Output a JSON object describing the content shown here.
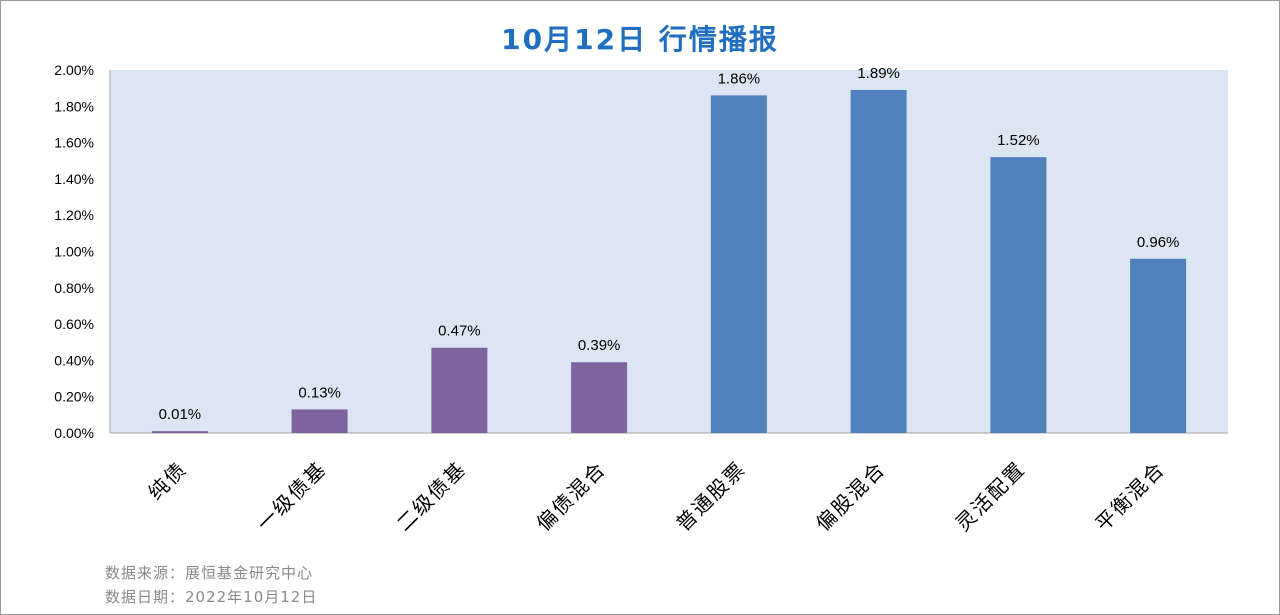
{
  "chart_data": {
    "type": "bar",
    "title": "10月12日  行情播报",
    "categories": [
      "纯债",
      "一级债基",
      "二级债基",
      "偏债混合",
      "普通股票",
      "偏股混合",
      "灵活配置",
      "平衡混合"
    ],
    "values": [
      0.01,
      0.13,
      0.47,
      0.39,
      1.86,
      1.89,
      1.52,
      0.96
    ],
    "data_labels": [
      "0.01%",
      "0.13%",
      "0.47%",
      "0.39%",
      "1.86%",
      "1.89%",
      "1.52%",
      "0.96%"
    ],
    "bar_colors": [
      "#8064a2",
      "#8064a2",
      "#8064a2",
      "#8064a2",
      "#4f81bd",
      "#4f81bd",
      "#4f81bd",
      "#4f81bd"
    ],
    "ylim": [
      0,
      2.0
    ],
    "yticks": [
      0,
      0.2,
      0.4,
      0.6,
      0.8,
      1.0,
      1.2,
      1.4,
      1.6,
      1.8,
      2.0
    ],
    "ytick_labels": [
      "0.00%",
      "0.20%",
      "0.40%",
      "0.60%",
      "0.80%",
      "1.00%",
      "1.20%",
      "1.40%",
      "1.60%",
      "1.80%",
      "2.00%"
    ],
    "xlabel": "",
    "ylabel": "",
    "grid": false,
    "plot_background": "#dce6f2"
  },
  "notes": {
    "source": "数据来源：展恒基金研究中心",
    "date": "数据日期：2022年10月12日"
  },
  "colors": {
    "title": "#1f6ebf",
    "bond_series": "#8064a2",
    "equity_series": "#4f81bd"
  }
}
